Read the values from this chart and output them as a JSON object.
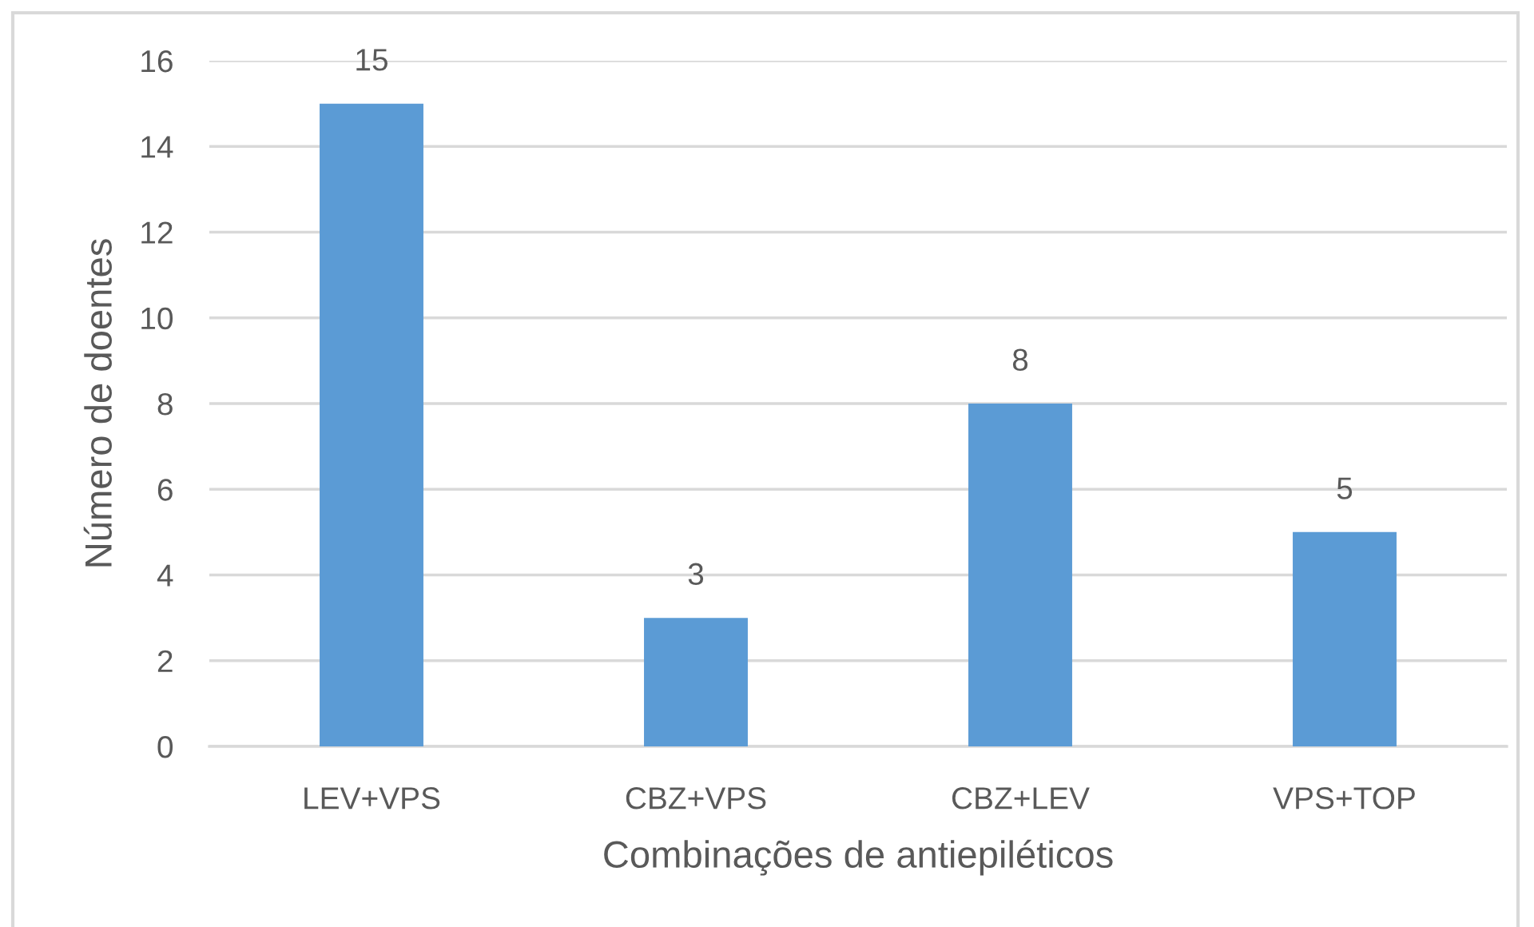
{
  "chart_data": {
    "type": "bar",
    "xlabel": "Combinações de antiepiléticos",
    "ylabel": "Número de doentes",
    "categories": [
      "LEV+VPS",
      "CBZ+VPS",
      "CBZ+LEV",
      "VPS+TOP"
    ],
    "values": [
      15,
      3,
      8,
      5
    ],
    "color": "#5b9bd5",
    "ylim": [
      0,
      16
    ],
    "yticks": [
      0,
      2,
      4,
      6,
      8,
      10,
      12,
      14,
      16
    ],
    "grid": "y",
    "data_labels": true
  }
}
